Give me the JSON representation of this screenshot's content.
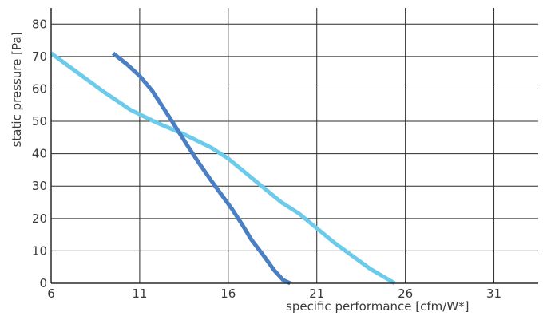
{
  "chart_data": {
    "type": "line",
    "title": "",
    "xlabel": "specific performance [cfm/W*]",
    "ylabel": "static pressure [Pa]",
    "xlim": [
      6,
      33.5
    ],
    "ylim": [
      0,
      85
    ],
    "x_ticks": [
      6,
      11,
      16,
      21,
      26,
      31
    ],
    "y_ticks": [
      0,
      10,
      20,
      30,
      40,
      50,
      60,
      70,
      80
    ],
    "x_tick_labels": [
      "6",
      "11",
      "16",
      "21",
      "26",
      "31"
    ],
    "y_tick_labels": [
      "0",
      "10",
      "20",
      "30",
      "40",
      "50",
      "60",
      "70",
      "80"
    ],
    "grid": true,
    "legend": "none",
    "series": [
      {
        "color": "#6ccbea",
        "x": [
          6,
          7.5,
          9,
          10.5,
          12,
          13.5,
          15,
          16,
          17,
          18,
          19,
          20,
          21,
          22,
          23,
          24,
          25.4
        ],
        "y": [
          71,
          65,
          59,
          53.5,
          49.5,
          46,
          42,
          38.5,
          34,
          29.5,
          25,
          21.5,
          17,
          12.5,
          8.5,
          4.5,
          0
        ]
      },
      {
        "color": "#4a7fc3",
        "x": [
          9.5,
          10.3,
          11,
          11.7,
          12.3,
          13,
          13.7,
          14.3,
          15,
          15.6,
          16.2,
          16.8,
          17.3,
          18,
          18.6,
          19.1,
          19.5
        ],
        "y": [
          71,
          67.5,
          64,
          59.5,
          54.5,
          48.5,
          42.5,
          37.5,
          32,
          27.5,
          23,
          18,
          13.5,
          8.5,
          4,
          1,
          0
        ]
      }
    ]
  }
}
